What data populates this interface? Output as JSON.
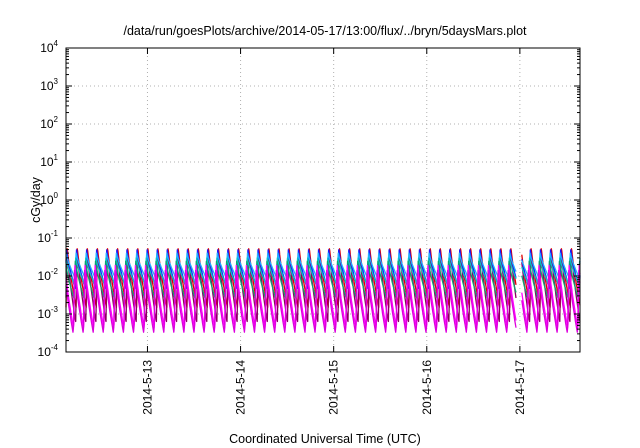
{
  "chart_data": {
    "type": "line",
    "title": "/data/run/goesPlots/archive/2014-05-17/13:00/flux/../bryn/5daysMars.plot",
    "xlabel": "Coordinated Universal Time (UTC)",
    "ylabel": "cGy/day",
    "yscale": "log",
    "ylim": [
      0.0001,
      10000
    ],
    "xlim": [
      "2014-05-12T03:00",
      "2014-05-17T15:30"
    ],
    "y_ticks": [
      {
        "base": "10",
        "exp": "-4",
        "value": 0.0001
      },
      {
        "base": "10",
        "exp": "-3",
        "value": 0.001
      },
      {
        "base": "10",
        "exp": "-2",
        "value": 0.01
      },
      {
        "base": "10",
        "exp": "-1",
        "value": 0.1
      },
      {
        "base": "10",
        "exp": "0",
        "value": 1
      },
      {
        "base": "10",
        "exp": "1",
        "value": 10
      },
      {
        "base": "10",
        "exp": "2",
        "value": 100
      },
      {
        "base": "10",
        "exp": "3",
        "value": 1000
      },
      {
        "base": "10",
        "exp": "4",
        "value": 10000
      }
    ],
    "x_ticks": [
      {
        "label": "2014-5-13",
        "value": "2014-05-13T00:00"
      },
      {
        "label": "2014-5-14",
        "value": "2014-05-14T00:00"
      },
      {
        "label": "2014-5-15",
        "value": "2014-05-15T00:00"
      },
      {
        "label": "2014-5-16",
        "value": "2014-05-16T00:00"
      },
      {
        "label": "2014-5-17",
        "value": "2014-05-17T00:00"
      }
    ],
    "grid": true,
    "legend": "none",
    "periodic_pattern": {
      "period_hours": 2.6,
      "notes": "Each series is a sawtooth: sharp rise at the start of each period, then decay to the minimum before the next rise."
    },
    "gap": {
      "start": "2014-05-16T23:00",
      "end": "2014-05-17T00:30"
    },
    "series": [
      {
        "color": "#e00000",
        "peak": 0.06,
        "trough": 0.0015
      },
      {
        "color": "#8b0060",
        "peak": 0.055,
        "trough": 0.0006
      },
      {
        "color": "#1a1aff",
        "peak": 0.05,
        "trough": 0.0045
      },
      {
        "color": "#20b0ff",
        "peak": 0.04,
        "trough": 0.009
      },
      {
        "color": "#00c8c8",
        "peak": 0.03,
        "trough": 0.006
      },
      {
        "color": "#0fa070",
        "peak": 0.025,
        "trough": 0.0025
      },
      {
        "color": "#ff00ff",
        "peak": 0.02,
        "trough": 0.0004
      },
      {
        "color": "#dd00dd",
        "peak": 0.015,
        "trough": 0.0003
      }
    ]
  }
}
